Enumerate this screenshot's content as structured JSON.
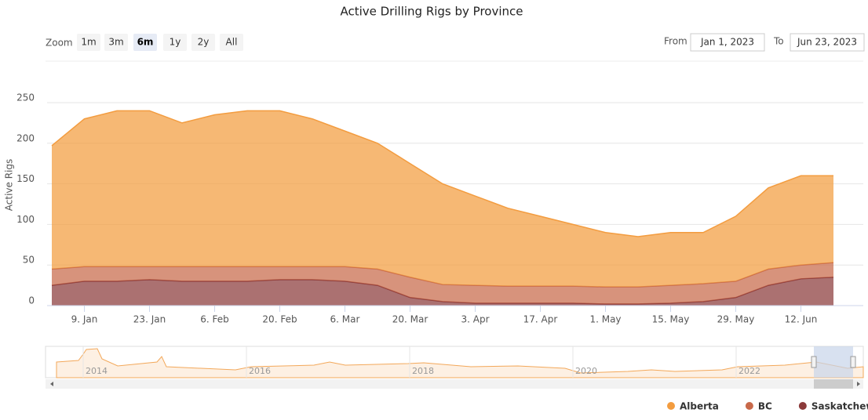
{
  "chart_data": {
    "type": "area",
    "stacked": true,
    "title": "Active Drilling Rigs by Province",
    "y_axis_label": "Active Rigs",
    "categories": [
      null,
      "9. Jan",
      null,
      "23. Jan",
      null,
      "6. Feb",
      null,
      "20. Feb",
      null,
      "6. Mar",
      null,
      "20. Mar",
      null,
      "3. Apr",
      null,
      "17. Apr",
      null,
      "1. May",
      null,
      "15. May",
      null,
      "29. May",
      null,
      "12. Jun",
      null
    ],
    "series": [
      {
        "name": "Saskatchewan",
        "color": "#8b3a3a",
        "values": [
          25,
          30,
          30,
          32,
          30,
          30,
          30,
          32,
          32,
          30,
          25,
          10,
          5,
          3,
          3,
          3,
          3,
          2,
          2,
          3,
          5,
          10,
          25,
          33,
          35
        ]
      },
      {
        "name": "BC",
        "color": "#c8694a",
        "values": [
          20,
          18,
          18,
          16,
          18,
          18,
          18,
          16,
          16,
          18,
          20,
          25,
          21,
          22,
          21,
          21,
          21,
          21,
          21,
          22,
          22,
          20,
          20,
          17,
          18
        ]
      },
      {
        "name": "Alberta",
        "color": "#f39c3f",
        "values": [
          152,
          182,
          192,
          192,
          177,
          187,
          192,
          192,
          182,
          167,
          155,
          140,
          124,
          110,
          96,
          86,
          76,
          67,
          62,
          65,
          63,
          80,
          100,
          110,
          107
        ]
      }
    ],
    "ylim": [
      0,
      250
    ],
    "yticks": [
      0,
      50,
      100,
      150,
      200,
      250
    ],
    "grid": true,
    "legend": "bottom-right"
  },
  "controls": {
    "zoom_label": "Zoom",
    "zoom_buttons": [
      "1m",
      "3m",
      "6m",
      "1y",
      "2y",
      "All"
    ],
    "selected": 2,
    "from_label": "From",
    "from": "Jan 1, 2023",
    "to_label": "To",
    "to": "Jun 23, 2023"
  },
  "navigator": {
    "labels": [
      "2014",
      "2016",
      "2018",
      "2020",
      "2022"
    ]
  }
}
